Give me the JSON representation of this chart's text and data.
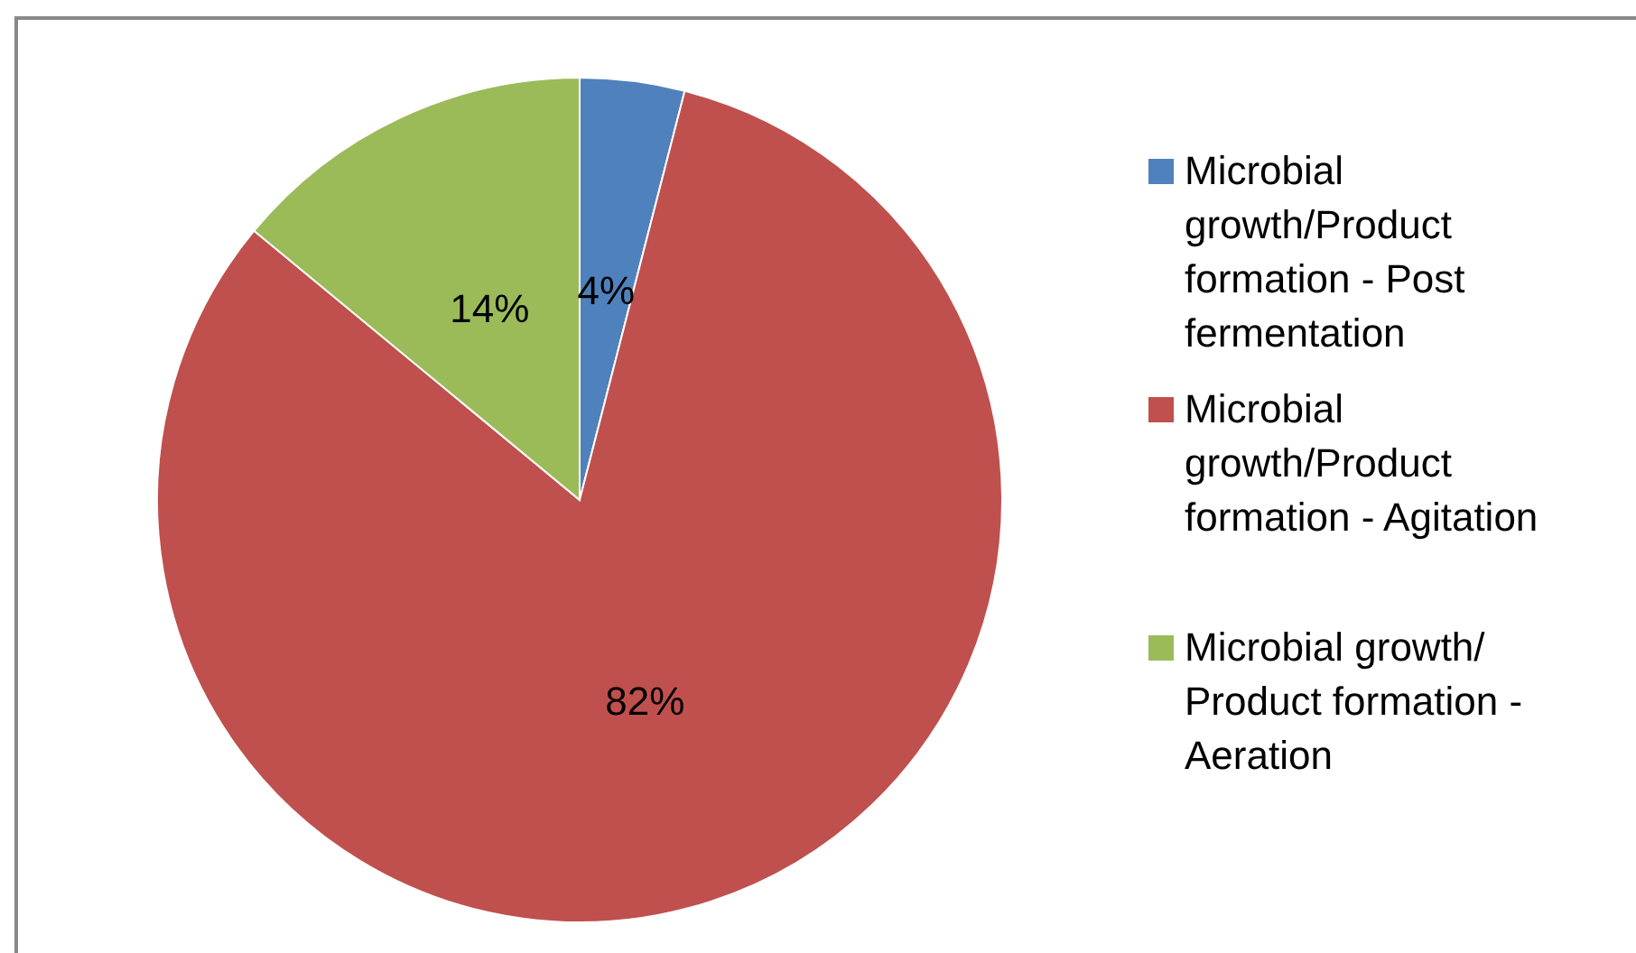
{
  "chart_data": {
    "type": "pie",
    "categories": [
      "Microbial growth/Product formation - Post fermentation",
      "Microbial growth/Product formation - Agitation",
      "Microbial growth/ Product formation - Aeration"
    ],
    "values": [
      4,
      82,
      14
    ],
    "colors": [
      "#4f81bd",
      "#c0504d",
      "#9bbb59"
    ],
    "value_labels": [
      "4%",
      "82%",
      "14%"
    ],
    "legend": "right"
  }
}
